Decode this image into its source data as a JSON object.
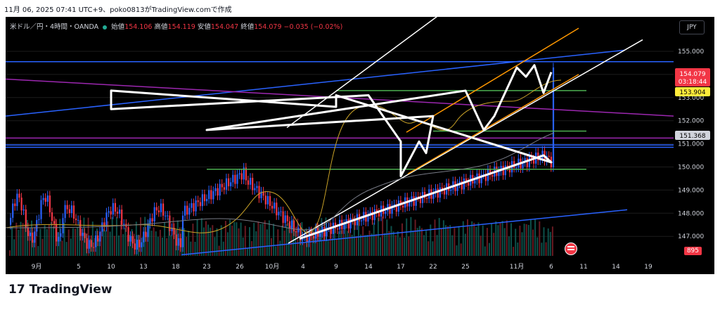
{
  "header": {
    "timestamp": "11月 06, 2025 07:41 UTC+9、poko0813がTradingView.comで作成"
  },
  "legend": {
    "symbol": "米ドル／円・4時間・OANDA",
    "open_label": "始値",
    "open": "154.106",
    "high_label": "高値",
    "high": "154.119",
    "low_label": "安値",
    "low": "154.047",
    "close_label": "終値",
    "close": "154.079",
    "change": "−0.035 (−0.02%)"
  },
  "currency_button": "JPY",
  "branding": {
    "logo_text": "TradingView"
  },
  "chart_data": {
    "type": "candlestick",
    "symbol": "USDJPY",
    "interval": "4h",
    "y_ticks": [
      "155.000",
      "154.000",
      "153.000",
      "152.000",
      "151.000",
      "150.000",
      "149.000",
      "148.000",
      "147.000"
    ],
    "x_ticks": [
      "9月",
      "5",
      "10",
      "13",
      "18",
      "23",
      "26",
      "10月",
      "4",
      "9",
      "14",
      "17",
      "22",
      "25",
      "11月",
      "6",
      "11",
      "14",
      "19"
    ],
    "price_labels": {
      "last": "154.079",
      "countdown": "03:18:44",
      "ma": "153.904",
      "level": "151.368"
    },
    "volume_label": "895",
    "horizontal_levels": [
      {
        "price": 154.55,
        "color": "#2962ff"
      },
      {
        "price": 151.25,
        "color": "#9c27b0"
      },
      {
        "price": 150.95,
        "color": "#2962ff"
      },
      {
        "price": 150.85,
        "color": "#2962ff"
      }
    ],
    "support_resistance": [
      {
        "price": 153.3,
        "color": "#4caf50",
        "from": "9",
        "to": "6"
      },
      {
        "price": 151.55,
        "color": "#4caf50",
        "from": "22",
        "to": "6"
      },
      {
        "price": 149.9,
        "color": "#4caf50",
        "from": "23",
        "to": "6"
      }
    ],
    "close_path": [
      {
        "x": "4",
        "y": 146.9
      },
      {
        "x": "5",
        "y": 150.5
      },
      {
        "x": "6",
        "y": 150.2
      },
      {
        "x": "9",
        "y": 153.1
      },
      {
        "x": "9",
        "y": 152.6
      },
      {
        "x": "10",
        "y": 153.3
      },
      {
        "x": "10",
        "y": 152.5
      },
      {
        "x": "14",
        "y": 153.1
      },
      {
        "x": "17",
        "y": 151.1
      },
      {
        "x": "17",
        "y": 149.6
      },
      {
        "x": "20",
        "y": 151.1
      },
      {
        "x": "21",
        "y": 150.6
      },
      {
        "x": "22",
        "y": 152.2
      },
      {
        "x": "23",
        "y": 151.6
      },
      {
        "x": "25",
        "y": 153.3
      },
      {
        "x": "27",
        "y": 151.6
      },
      {
        "x": "29",
        "y": 152.2
      },
      {
        "x": "11月",
        "y": 154.3
      },
      {
        "x": "2",
        "y": 153.9
      },
      {
        "x": "3",
        "y": 154.4
      },
      {
        "x": "5",
        "y": 153.2
      },
      {
        "x": "6",
        "y": 154.1
      }
    ],
    "colors": {
      "background": "#000000",
      "up": "#2962ff",
      "down": "#f23645",
      "ma_fast": "#c9a227",
      "ma_slow": "#787b86",
      "channel": "#ffffff",
      "orange_channel": "#ff9800",
      "trend_blue": "#2962ff",
      "trend_purple": "#9c27b0"
    }
  }
}
